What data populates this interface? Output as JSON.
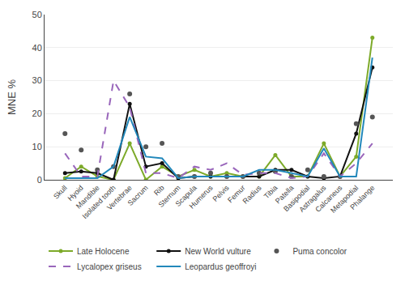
{
  "chart_data": {
    "type": "line",
    "categories": [
      "Skull",
      "Hyoid",
      "Mandible",
      "Isolated tooth",
      "Vertebrae",
      "Sacrum",
      "Rib",
      "Sternum",
      "Scapula",
      "Humerus",
      "Pelvis",
      "Femur",
      "Radius",
      "Tibia",
      "Patella",
      "Basipodial",
      "Astragalus",
      "Calcaneus",
      "Metapodial",
      "Phalange"
    ],
    "series": [
      {
        "name": "Late Holocene",
        "color": "#7daa2a",
        "line_style": "solid",
        "marker": "circle",
        "values": [
          0.5,
          4.0,
          1.0,
          0.0,
          11.0,
          0.0,
          4.0,
          1.0,
          3.0,
          1.0,
          2.0,
          1.0,
          1.0,
          7.5,
          1.0,
          1.0,
          11.0,
          1.0,
          7.0,
          43.0
        ]
      },
      {
        "name": "New World vulture",
        "color": "#111111",
        "line_style": "solid",
        "marker": "circle",
        "values": [
          2.0,
          2.5,
          2.0,
          0.0,
          23.0,
          4.0,
          5.0,
          0.5,
          1.0,
          1.0,
          1.0,
          1.0,
          1.0,
          3.0,
          3.0,
          1.0,
          0.5,
          1.0,
          14.0,
          34.0
        ]
      },
      {
        "name": "Puma concolor",
        "color": "#555555",
        "line_style": "none",
        "marker": "dot",
        "values": [
          14.0,
          9.0,
          3.0,
          4.0,
          26.0,
          10.0,
          11.0,
          1.0,
          1.0,
          2.0,
          1.0,
          1.0,
          2.0,
          2.5,
          1.0,
          3.0,
          1.0,
          1.0,
          17.0,
          19.0
        ]
      },
      {
        "name": "Lycalopex griseus",
        "color": "#9966bb",
        "line_style": "dashed",
        "marker": "none",
        "values": [
          8.0,
          1.0,
          1.0,
          30.0,
          22.0,
          2.0,
          2.0,
          0.5,
          4.0,
          3.0,
          5.0,
          1.5,
          2.0,
          2.0,
          0.5,
          1.0,
          8.0,
          1.0,
          5.0,
          11.0
        ]
      },
      {
        "name": "Leopardus geoffroyi",
        "color": "#2288bb",
        "line_style": "solid",
        "marker": "none",
        "values": [
          0.5,
          0.5,
          0.5,
          4.0,
          19.0,
          7.0,
          6.5,
          0.5,
          1.0,
          1.0,
          1.0,
          1.0,
          3.0,
          3.0,
          2.0,
          1.0,
          9.5,
          1.0,
          1.0,
          37.0
        ]
      }
    ],
    "ylabel": "MNE %",
    "ylim": [
      0,
      50
    ],
    "yticks": [
      0,
      10,
      20,
      30,
      40,
      50
    ],
    "grid": "y",
    "legend": "bottom"
  }
}
